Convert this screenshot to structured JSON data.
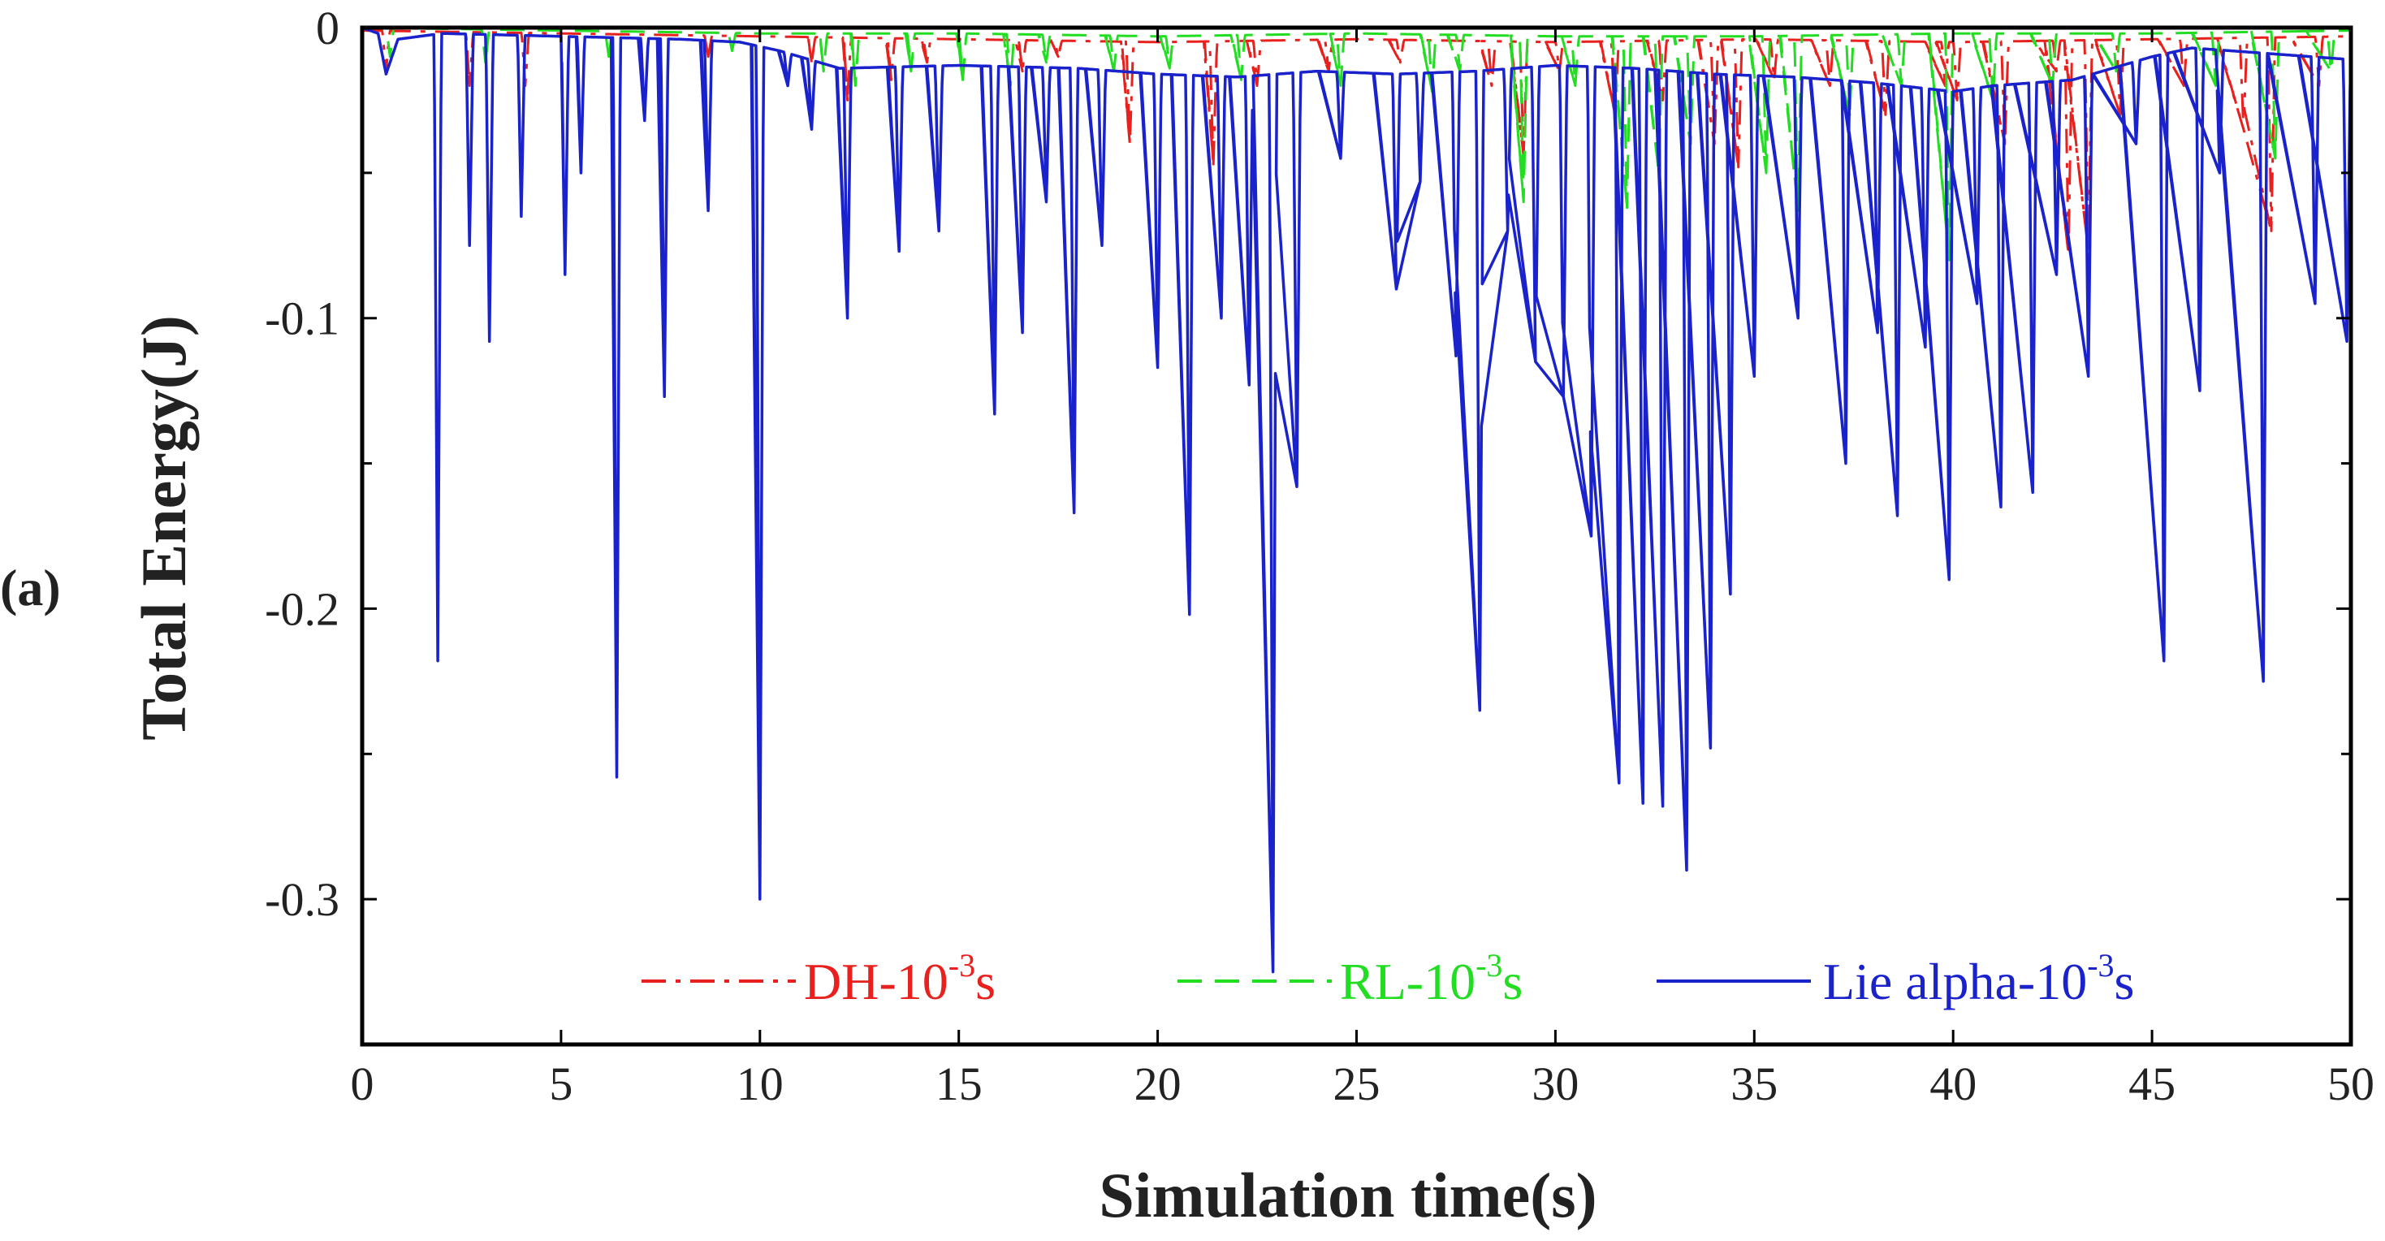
{
  "panel_label": "(a)",
  "chart_data": {
    "type": "line",
    "title": "",
    "xlabel": "Simulation time(s)",
    "ylabel": "Total Energy(J)",
    "xlim": [
      0,
      50
    ],
    "ylim": [
      -0.35,
      0
    ],
    "xticks": [
      0,
      5,
      10,
      15,
      20,
      25,
      30,
      35,
      40,
      45,
      50
    ],
    "xtick_labels": [
      "0",
      "5",
      "10",
      "15",
      "20",
      "25",
      "30",
      "35",
      "40",
      "45",
      "50"
    ],
    "yticks": [
      0,
      -0.1,
      -0.2,
      -0.3
    ],
    "ytick_labels": [
      "0",
      "-0.1",
      "-0.2",
      "-0.3"
    ],
    "grid": false,
    "legend_position": "bottom",
    "series": [
      {
        "name_base": "DH-10",
        "name_sup": "-3",
        "name_tail": "s",
        "color": "#e8201e",
        "style": "dashdot",
        "baseline_points": [
          [
            0,
            -0.001
          ],
          [
            5,
            -0.002
          ],
          [
            10,
            -0.003
          ],
          [
            15,
            -0.004
          ],
          [
            20,
            -0.005
          ],
          [
            25,
            -0.004
          ],
          [
            30,
            -0.005
          ],
          [
            35,
            -0.004
          ],
          [
            40,
            -0.005
          ],
          [
            45,
            -0.004
          ],
          [
            50,
            -0.003
          ]
        ],
        "spikes": [
          [
            0.6,
            -0.015
          ],
          [
            2.7,
            -0.02
          ],
          [
            4.1,
            -0.02
          ],
          [
            8.7,
            -0.01
          ],
          [
            11.3,
            -0.012
          ],
          [
            12.2,
            -0.025
          ],
          [
            13.3,
            -0.018
          ],
          [
            14.2,
            -0.012
          ],
          [
            16.6,
            -0.015
          ],
          [
            17.5,
            -0.01
          ],
          [
            19.3,
            -0.04
          ],
          [
            21.4,
            -0.047
          ],
          [
            22.5,
            -0.02
          ],
          [
            24.3,
            -0.015
          ],
          [
            26.1,
            -0.012
          ],
          [
            28.4,
            -0.02
          ],
          [
            29.2,
            -0.044
          ],
          [
            30.1,
            -0.015
          ],
          [
            31.5,
            -0.03
          ],
          [
            32.7,
            -0.025
          ],
          [
            34.0,
            -0.04
          ],
          [
            34.6,
            -0.048
          ],
          [
            35.5,
            -0.018
          ],
          [
            36.9,
            -0.02
          ],
          [
            38.3,
            -0.03
          ],
          [
            39.8,
            -0.02
          ],
          [
            40.1,
            -0.025
          ],
          [
            41.3,
            -0.04
          ],
          [
            42.6,
            -0.015
          ],
          [
            42.9,
            -0.078
          ],
          [
            43.4,
            -0.077
          ],
          [
            44.2,
            -0.03
          ],
          [
            45.8,
            -0.02
          ],
          [
            47.3,
            -0.035
          ],
          [
            48.0,
            -0.07
          ],
          [
            49.2,
            -0.02
          ]
        ]
      },
      {
        "name_base": "RL-10",
        "name_sup": "-3",
        "name_tail": "s",
        "color": "#22dd22",
        "style": "dashed",
        "baseline_points": [
          [
            0,
            0
          ],
          [
            5,
            -0.001
          ],
          [
            10,
            -0.002
          ],
          [
            15,
            -0.002
          ],
          [
            20,
            -0.003
          ],
          [
            25,
            -0.002
          ],
          [
            30,
            -0.003
          ],
          [
            35,
            -0.003
          ],
          [
            40,
            -0.002
          ],
          [
            45,
            -0.002
          ],
          [
            50,
            -0.001
          ]
        ],
        "spikes": [
          [
            0.7,
            -0.01
          ],
          [
            3.1,
            -0.012
          ],
          [
            6.2,
            -0.01
          ],
          [
            9.3,
            -0.008
          ],
          [
            11.6,
            -0.015
          ],
          [
            12.4,
            -0.02
          ],
          [
            13.8,
            -0.015
          ],
          [
            15.1,
            -0.018
          ],
          [
            16.3,
            -0.02
          ],
          [
            17.2,
            -0.012
          ],
          [
            18.9,
            -0.015
          ],
          [
            20.3,
            -0.014
          ],
          [
            22.1,
            -0.018
          ],
          [
            24.6,
            -0.02
          ],
          [
            26.9,
            -0.022
          ],
          [
            27.6,
            -0.015
          ],
          [
            29.2,
            -0.06
          ],
          [
            30.5,
            -0.02
          ],
          [
            31.8,
            -0.062
          ],
          [
            32.6,
            -0.05
          ],
          [
            33.4,
            -0.04
          ],
          [
            35.3,
            -0.05
          ],
          [
            36.1,
            -0.063
          ],
          [
            37.4,
            -0.03
          ],
          [
            38.7,
            -0.02
          ],
          [
            39.9,
            -0.08
          ],
          [
            41.0,
            -0.025
          ],
          [
            42.5,
            -0.02
          ],
          [
            44.1,
            -0.015
          ],
          [
            46.6,
            -0.02
          ],
          [
            48.1,
            -0.045
          ],
          [
            49.5,
            -0.015
          ]
        ]
      },
      {
        "name_base": "Lie alpha-10",
        "name_sup": "-3",
        "name_tail": "s",
        "color": "#1a22cc",
        "style": "solid",
        "baseline_points": [
          [
            0,
            0
          ],
          [
            0.4,
            -0.002
          ],
          [
            0.6,
            -0.016
          ],
          [
            0.9,
            -0.004
          ],
          [
            2.0,
            -0.002
          ],
          [
            5,
            -0.003
          ],
          [
            8,
            -0.004
          ],
          [
            9.5,
            -0.005
          ],
          [
            10.5,
            -0.008
          ],
          [
            12,
            -0.014
          ],
          [
            15,
            -0.013
          ],
          [
            18,
            -0.014
          ],
          [
            20,
            -0.016
          ],
          [
            22,
            -0.017
          ],
          [
            24,
            -0.015
          ],
          [
            26,
            -0.016
          ],
          [
            28,
            -0.015
          ],
          [
            30,
            -0.013
          ],
          [
            32,
            -0.014
          ],
          [
            34,
            -0.016
          ],
          [
            36,
            -0.017
          ],
          [
            38,
            -0.019
          ],
          [
            40,
            -0.022
          ],
          [
            41,
            -0.02
          ],
          [
            43,
            -0.018
          ],
          [
            45,
            -0.01
          ],
          [
            46,
            -0.007
          ],
          [
            48,
            -0.009
          ],
          [
            50,
            -0.011
          ]
        ],
        "spikes": [
          [
            1.9,
            -0.218
          ],
          [
            2.7,
            -0.075
          ],
          [
            3.2,
            -0.108
          ],
          [
            4.0,
            -0.065
          ],
          [
            5.1,
            -0.085
          ],
          [
            5.5,
            -0.05
          ],
          [
            6.4,
            -0.258
          ],
          [
            7.1,
            -0.032
          ],
          [
            7.6,
            -0.127
          ],
          [
            8.7,
            -0.063
          ],
          [
            10.0,
            -0.3
          ],
          [
            10.7,
            -0.02
          ],
          [
            11.3,
            -0.035
          ],
          [
            12.2,
            -0.1
          ],
          [
            13.5,
            -0.077
          ],
          [
            14.5,
            -0.07
          ],
          [
            15.9,
            -0.133
          ],
          [
            16.6,
            -0.105
          ],
          [
            17.2,
            -0.06
          ],
          [
            17.9,
            -0.167
          ],
          [
            18.6,
            -0.075
          ],
          [
            20.0,
            -0.117
          ],
          [
            20.8,
            -0.202
          ],
          [
            21.6,
            -0.1
          ],
          [
            22.3,
            -0.123
          ],
          [
            22.9,
            -0.325
          ],
          [
            23.5,
            -0.158
          ],
          [
            24.6,
            -0.045
          ],
          [
            26.0,
            -0.09
          ],
          [
            26.6,
            -0.053
          ],
          [
            27.5,
            -0.113
          ],
          [
            28.1,
            -0.235
          ],
          [
            28.8,
            -0.07
          ],
          [
            29.5,
            -0.115
          ],
          [
            30.2,
            -0.127
          ],
          [
            30.9,
            -0.175
          ],
          [
            31.6,
            -0.26
          ],
          [
            32.2,
            -0.267
          ],
          [
            32.7,
            -0.268
          ],
          [
            33.3,
            -0.29
          ],
          [
            33.9,
            -0.248
          ],
          [
            34.4,
            -0.195
          ],
          [
            35.0,
            -0.12
          ],
          [
            36.1,
            -0.1
          ],
          [
            37.3,
            -0.15
          ],
          [
            38.1,
            -0.105
          ],
          [
            38.6,
            -0.168
          ],
          [
            39.3,
            -0.11
          ],
          [
            39.9,
            -0.19
          ],
          [
            40.6,
            -0.095
          ],
          [
            41.2,
            -0.165
          ],
          [
            42.0,
            -0.16
          ],
          [
            42.6,
            -0.085
          ],
          [
            43.4,
            -0.12
          ],
          [
            44.6,
            -0.04
          ],
          [
            45.3,
            -0.218
          ],
          [
            46.2,
            -0.125
          ],
          [
            46.7,
            -0.05
          ],
          [
            47.8,
            -0.225
          ],
          [
            49.1,
            -0.095
          ],
          [
            49.9,
            -0.108
          ]
        ]
      }
    ]
  }
}
